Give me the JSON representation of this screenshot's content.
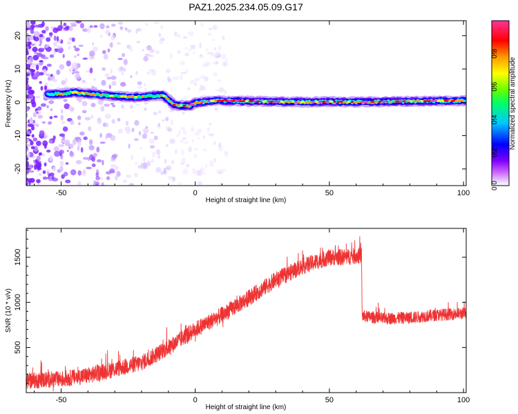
{
  "title": "PAZ1.2025.234.05.09.G17",
  "chart_data": [
    {
      "type": "heatmap",
      "title": "",
      "xlabel": "Height of straight line (km)",
      "ylabel": "Frequency (Hz)",
      "xlim": [
        -63,
        101
      ],
      "ylim": [
        -25,
        24.5
      ],
      "xticks": [
        -50,
        0,
        50,
        100
      ],
      "yticks": [
        -20,
        -10,
        0,
        10,
        20
      ],
      "ridge": {
        "x": [
          -55,
          -50,
          -45,
          -40,
          -35,
          -30,
          -25,
          -20,
          -15,
          -12,
          -10,
          -8,
          -5,
          -2,
          0,
          5,
          10,
          20,
          30,
          40,
          50,
          60,
          70,
          80,
          90,
          100
        ],
        "freq": [
          2.5,
          2.5,
          3.0,
          2.6,
          2.2,
          1.9,
          1.6,
          1.6,
          2.0,
          2.1,
          0.8,
          -0.8,
          -1.0,
          -1.0,
          -0.2,
          0.3,
          0.5,
          0.3,
          0.2,
          0.1,
          0.2,
          0.1,
          0.2,
          0.3,
          0.4,
          0.5
        ]
      },
      "colorbar": {
        "label": "Normalized spectral amplitude",
        "ticks": [
          0.0,
          0.2,
          0.4,
          0.6,
          0.8
        ],
        "tick_labels": [
          "0.0",
          "0.2",
          "0.4",
          "0.6",
          "0.8"
        ],
        "range": [
          0,
          1
        ],
        "colors": [
          "#ffffff",
          "#cc99ff",
          "#6600cc",
          "#0000ff",
          "#00ffff",
          "#00ff00",
          "#ffff00",
          "#ff8800",
          "#ff0000",
          "#ff3399"
        ]
      }
    },
    {
      "type": "line",
      "title": "",
      "xlabel": "Height of straight line (km)",
      "ylabel": "SNR (10 * v/v)",
      "xlim": [
        -63,
        101
      ],
      "ylim": [
        0,
        1820
      ],
      "xticks": [
        -50,
        0,
        50,
        100
      ],
      "yticks": [
        500,
        1000,
        1500
      ],
      "color": "#ee3333",
      "trend": {
        "x": [
          -63,
          -50,
          -40,
          -30,
          -20,
          -10,
          0,
          10,
          20,
          30,
          40,
          50,
          55,
          62,
          62.2,
          70,
          80,
          90,
          101
        ],
        "snr": [
          130,
          150,
          190,
          260,
          330,
          500,
          700,
          860,
          1050,
          1250,
          1400,
          1500,
          1500,
          1520,
          850,
          820,
          830,
          860,
          880
        ]
      },
      "noise_amplitude": [
        {
          "from": -63,
          "to": 62,
          "amp": 90
        },
        {
          "from": 62,
          "to": 101,
          "amp": 65
        }
      ]
    }
  ]
}
